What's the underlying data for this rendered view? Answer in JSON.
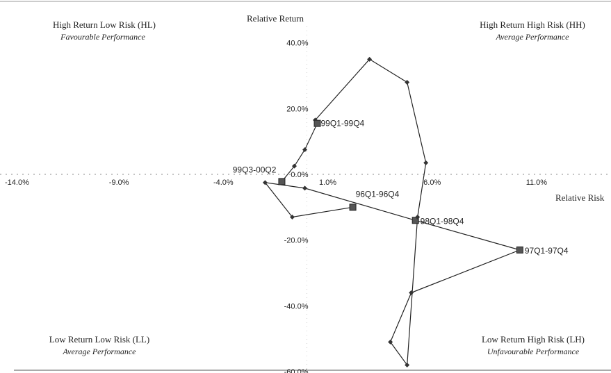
{
  "chart_data": {
    "type": "scatter",
    "title": "",
    "xlabel": "Relative Risk",
    "ylabel": "Relative Return",
    "xlim": [
      -14,
      14.5
    ],
    "ylim": [
      -60,
      45
    ],
    "x_ticks": [
      {
        "value": -14,
        "label": "-14.0%"
      },
      {
        "value": -9,
        "label": "-9.0%"
      },
      {
        "value": -4,
        "label": "-4.0%"
      },
      {
        "value": 1,
        "label": "1.0%"
      },
      {
        "value": 6,
        "label": "6.0%"
      },
      {
        "value": 11,
        "label": "11.0%"
      }
    ],
    "y_ticks": [
      {
        "value": 40,
        "label": "40.0%"
      },
      {
        "value": 20,
        "label": "20.0%"
      },
      {
        "value": 0,
        "label": "0.0%"
      },
      {
        "value": -20,
        "label": "-20.0%"
      },
      {
        "value": -40,
        "label": "-40.0%"
      },
      {
        "value": -60,
        "label": "-60.0%"
      }
    ],
    "quadrants": [
      {
        "title": "High Return Low Risk (HL)",
        "subtitle": "Favourable Performance",
        "position": "top-left"
      },
      {
        "title": "High Return High Risk (HH)",
        "subtitle": "Average Performance",
        "position": "top-right"
      },
      {
        "title": "Low Return Low Risk (LL)",
        "subtitle": "Average Performance",
        "position": "bottom-left"
      },
      {
        "title": "Low Return High Risk (LH)",
        "subtitle": "Unfavourable Performance",
        "position": "bottom-right"
      }
    ],
    "points": [
      {
        "x": 2.2,
        "y": -10.0,
        "marker": "square"
      },
      {
        "x": -0.7,
        "y": -13.0,
        "marker": "diamond"
      },
      {
        "x": -2.0,
        "y": -2.5,
        "marker": "diamond"
      },
      {
        "x": -0.1,
        "y": -4.2,
        "marker": "diamond"
      },
      {
        "x": 5.2,
        "y": -14.0,
        "marker": "square",
        "label": "98Q1-98Q4"
      },
      {
        "x": 10.2,
        "y": -23.0,
        "marker": "square",
        "label": "97Q1-97Q4"
      },
      {
        "x": 5.0,
        "y": -36.0,
        "marker": "diamond"
      },
      {
        "x": 4.0,
        "y": -51.0,
        "marker": "diamond"
      },
      {
        "x": 4.8,
        "y": -58.0,
        "marker": "diamond"
      },
      {
        "x": 5.3,
        "y": -13.0,
        "marker": "diamond"
      },
      {
        "x": 5.7,
        "y": 3.5,
        "marker": "diamond"
      },
      {
        "x": 4.8,
        "y": 28.0,
        "marker": "diamond"
      },
      {
        "x": 3.0,
        "y": 35.0,
        "marker": "diamond"
      },
      {
        "x": 0.4,
        "y": 16.5,
        "marker": "diamond"
      },
      {
        "x": 0.5,
        "y": 15.5,
        "marker": "square",
        "label": "99Q1-99Q4"
      },
      {
        "x": -0.1,
        "y": 7.5,
        "marker": "diamond"
      },
      {
        "x": -0.6,
        "y": 2.5,
        "marker": "diamond"
      },
      {
        "x": -1.2,
        "y": -2.2,
        "marker": "square",
        "label": "99Q3-00Q2"
      }
    ],
    "extra_label": {
      "text": "96Q1-96Q4",
      "x": 2.2,
      "y": -6.0
    },
    "grid": false,
    "legend": "none"
  }
}
